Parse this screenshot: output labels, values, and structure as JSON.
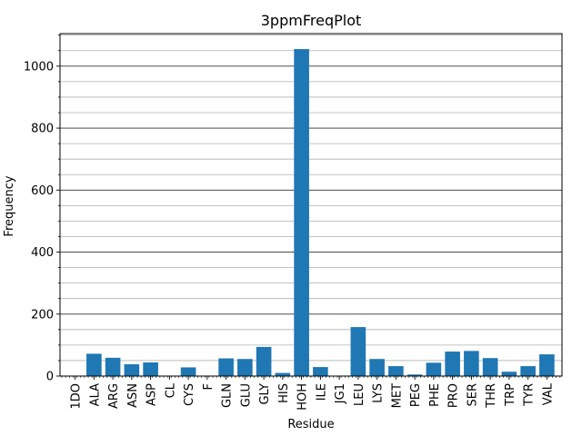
{
  "chart_data": {
    "type": "bar",
    "title": "3ppmFreqPlot",
    "xlabel": "Residue",
    "ylabel": "Frequency",
    "categories": [
      "1DO",
      "ALA",
      "ARG",
      "ASN",
      "ASP",
      "CL",
      "CYS",
      "F",
      "GLN",
      "GLU",
      "GLY",
      "HIS",
      "HOH",
      "ILE",
      "JG1",
      "LEU",
      "LYS",
      "MET",
      "PEG",
      "PHE",
      "PRO",
      "SER",
      "THR",
      "TRP",
      "TYR",
      "VAL"
    ],
    "values": [
      1,
      72,
      59,
      38,
      44,
      1,
      28,
      1,
      57,
      55,
      94,
      10,
      1055,
      29,
      1,
      158,
      55,
      32,
      5,
      43,
      79,
      81,
      58,
      14,
      32,
      70
    ],
    "ylim": [
      0,
      1105
    ],
    "yticks": [
      0,
      200,
      400,
      600,
      800,
      1000
    ],
    "grid": true,
    "bar_color": "#1f77b4"
  }
}
